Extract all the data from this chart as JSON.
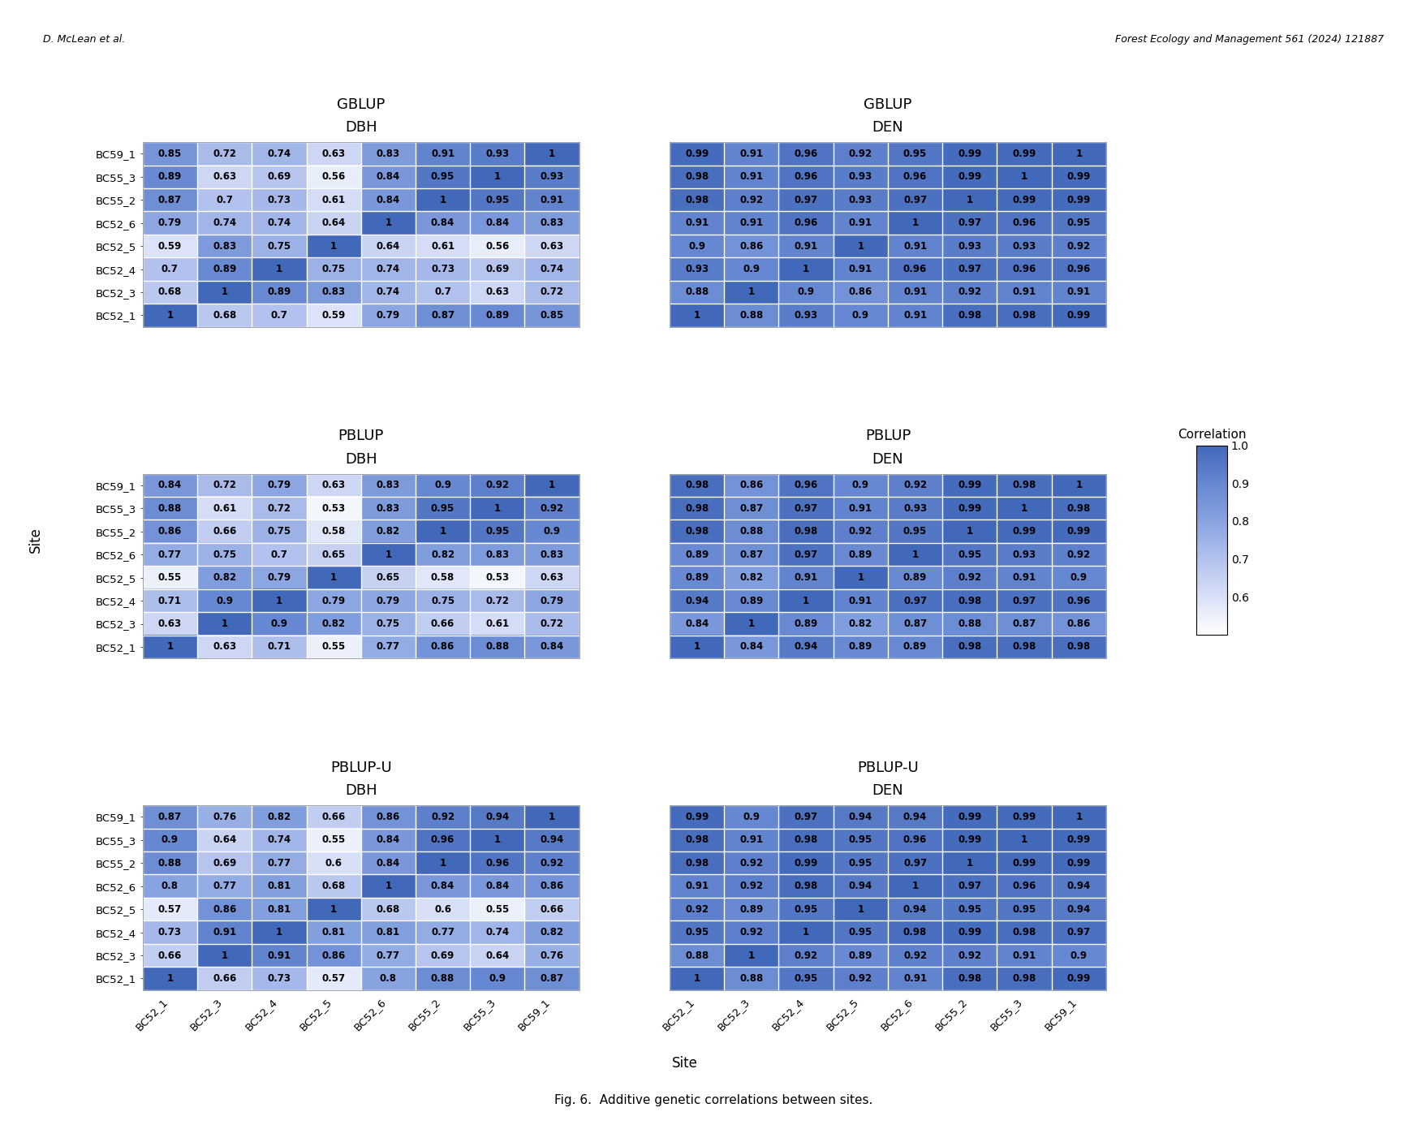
{
  "sites": [
    "BC52_1",
    "BC52_3",
    "BC52_4",
    "BC52_5",
    "BC52_6",
    "BC55_2",
    "BC55_3",
    "BC59_1"
  ],
  "ytick_labels": [
    "BC59_1",
    "BC55_3",
    "BC55_2",
    "BC52_6",
    "BC52_5",
    "BC52_4",
    "BC52_3",
    "BC52_1"
  ],
  "panels": {
    "GBLUP_DBH": [
      [
        0.85,
        0.72,
        0.74,
        0.63,
        0.83,
        0.91,
        0.93,
        1.0
      ],
      [
        0.89,
        0.63,
        0.69,
        0.56,
        0.84,
        0.95,
        1.0,
        0.93
      ],
      [
        0.87,
        0.7,
        0.73,
        0.61,
        0.84,
        1.0,
        0.95,
        0.91
      ],
      [
        0.79,
        0.74,
        0.74,
        0.64,
        1.0,
        0.84,
        0.84,
        0.83
      ],
      [
        0.59,
        0.83,
        0.75,
        1.0,
        0.64,
        0.61,
        0.56,
        0.63
      ],
      [
        0.7,
        0.89,
        1.0,
        0.75,
        0.74,
        0.73,
        0.69,
        0.74
      ],
      [
        0.68,
        1.0,
        0.89,
        0.83,
        0.74,
        0.7,
        0.63,
        0.72
      ],
      [
        1.0,
        0.68,
        0.7,
        0.59,
        0.79,
        0.87,
        0.89,
        0.85
      ]
    ],
    "GBLUP_DEN": [
      [
        0.99,
        0.91,
        0.96,
        0.92,
        0.95,
        0.99,
        0.99,
        1.0
      ],
      [
        0.98,
        0.91,
        0.96,
        0.93,
        0.96,
        0.99,
        1.0,
        0.99
      ],
      [
        0.98,
        0.92,
        0.97,
        0.93,
        0.97,
        1.0,
        0.99,
        0.99
      ],
      [
        0.91,
        0.91,
        0.96,
        0.91,
        1.0,
        0.97,
        0.96,
        0.95
      ],
      [
        0.9,
        0.86,
        0.91,
        1.0,
        0.91,
        0.93,
        0.93,
        0.92
      ],
      [
        0.93,
        0.9,
        1.0,
        0.91,
        0.96,
        0.97,
        0.96,
        0.96
      ],
      [
        0.88,
        1.0,
        0.9,
        0.86,
        0.91,
        0.92,
        0.91,
        0.91
      ],
      [
        1.0,
        0.88,
        0.93,
        0.9,
        0.91,
        0.98,
        0.98,
        0.99
      ]
    ],
    "PBLUP_DBH": [
      [
        0.84,
        0.72,
        0.79,
        0.63,
        0.83,
        0.9,
        0.92,
        1.0
      ],
      [
        0.88,
        0.61,
        0.72,
        0.53,
        0.83,
        0.95,
        1.0,
        0.92
      ],
      [
        0.86,
        0.66,
        0.75,
        0.58,
        0.82,
        1.0,
        0.95,
        0.9
      ],
      [
        0.77,
        0.75,
        0.7,
        0.65,
        1.0,
        0.82,
        0.83,
        0.83
      ],
      [
        0.55,
        0.82,
        0.79,
        1.0,
        0.65,
        0.58,
        0.53,
        0.63
      ],
      [
        0.71,
        0.9,
        1.0,
        0.79,
        0.79,
        0.75,
        0.72,
        0.79
      ],
      [
        0.63,
        1.0,
        0.9,
        0.82,
        0.75,
        0.66,
        0.61,
        0.72
      ],
      [
        1.0,
        0.63,
        0.71,
        0.55,
        0.77,
        0.86,
        0.88,
        0.84
      ]
    ],
    "PBLUP_DEN": [
      [
        0.98,
        0.86,
        0.96,
        0.9,
        0.92,
        0.99,
        0.98,
        1.0
      ],
      [
        0.98,
        0.87,
        0.97,
        0.91,
        0.93,
        0.99,
        1.0,
        0.98
      ],
      [
        0.98,
        0.88,
        0.98,
        0.92,
        0.95,
        1.0,
        0.99,
        0.99
      ],
      [
        0.89,
        0.87,
        0.97,
        0.89,
        1.0,
        0.95,
        0.93,
        0.92
      ],
      [
        0.89,
        0.82,
        0.91,
        1.0,
        0.89,
        0.92,
        0.91,
        0.9
      ],
      [
        0.94,
        0.89,
        1.0,
        0.91,
        0.97,
        0.98,
        0.97,
        0.96
      ],
      [
        0.84,
        1.0,
        0.89,
        0.82,
        0.87,
        0.88,
        0.87,
        0.86
      ],
      [
        1.0,
        0.84,
        0.94,
        0.89,
        0.89,
        0.98,
        0.98,
        0.98
      ]
    ],
    "PBLUP-U_DBH": [
      [
        0.87,
        0.76,
        0.82,
        0.66,
        0.86,
        0.92,
        0.94,
        1.0
      ],
      [
        0.9,
        0.64,
        0.74,
        0.55,
        0.84,
        0.96,
        1.0,
        0.94
      ],
      [
        0.88,
        0.69,
        0.77,
        0.6,
        0.84,
        1.0,
        0.96,
        0.92
      ],
      [
        0.8,
        0.77,
        0.81,
        0.68,
        1.0,
        0.84,
        0.84,
        0.86
      ],
      [
        0.57,
        0.86,
        0.81,
        1.0,
        0.68,
        0.6,
        0.55,
        0.66
      ],
      [
        0.73,
        0.91,
        1.0,
        0.81,
        0.81,
        0.77,
        0.74,
        0.82
      ],
      [
        0.66,
        1.0,
        0.91,
        0.86,
        0.77,
        0.69,
        0.64,
        0.76
      ],
      [
        1.0,
        0.66,
        0.73,
        0.57,
        0.8,
        0.88,
        0.9,
        0.87
      ]
    ],
    "PBLUP-U_DEN": [
      [
        0.99,
        0.9,
        0.97,
        0.94,
        0.94,
        0.99,
        0.99,
        1.0
      ],
      [
        0.98,
        0.91,
        0.98,
        0.95,
        0.96,
        0.99,
        1.0,
        0.99
      ],
      [
        0.98,
        0.92,
        0.99,
        0.95,
        0.97,
        1.0,
        0.99,
        0.99
      ],
      [
        0.91,
        0.92,
        0.98,
        0.94,
        1.0,
        0.97,
        0.96,
        0.94
      ],
      [
        0.92,
        0.89,
        0.95,
        1.0,
        0.94,
        0.95,
        0.95,
        0.94
      ],
      [
        0.95,
        0.92,
        1.0,
        0.95,
        0.98,
        0.99,
        0.98,
        0.97
      ],
      [
        0.88,
        1.0,
        0.92,
        0.89,
        0.92,
        0.92,
        0.91,
        0.9
      ],
      [
        1.0,
        0.88,
        0.95,
        0.92,
        0.91,
        0.98,
        0.98,
        0.99
      ]
    ]
  },
  "vmin": 0.5,
  "vmax": 1.0,
  "header_bg": "#dcdcdc",
  "cell_fontsize": 8.5,
  "label_fontsize": 9.5,
  "title_fontsize": 13,
  "subtitle_fontsize": 13,
  "colorbar_ticks": [
    1.0,
    0.9,
    0.8,
    0.7,
    0.6
  ],
  "colorbar_label": "Correlation",
  "fig_caption": "Fig. 6.  Additive genetic correlations between sites.",
  "ylabel": "Site",
  "xlabel": "Site",
  "header_text_left": "D. McLean et al.",
  "header_text_right": "Forest Ecology and Management 561 (2024) 121887"
}
